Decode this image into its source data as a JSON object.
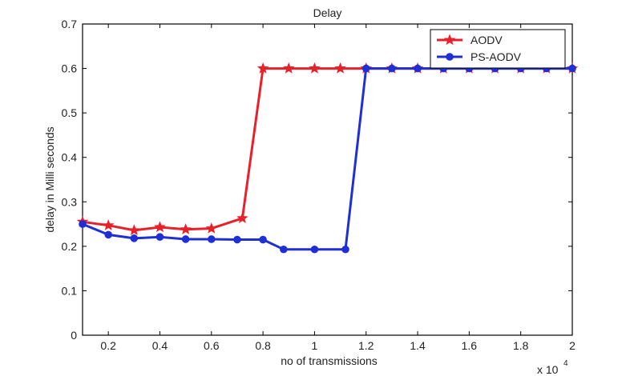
{
  "chart_data": {
    "type": "line",
    "title": "Delay",
    "xlabel": "no of transmissions",
    "ylabel": "delay in Milli seconds",
    "x_multiplier_label": "x 10",
    "x_multiplier_exponent": "4",
    "xlim": [
      0.1,
      2.0
    ],
    "ylim": [
      0,
      0.7
    ],
    "x_ticks": [
      0.2,
      0.4,
      0.6,
      0.8,
      1,
      1.2,
      1.4,
      1.6,
      1.8,
      2
    ],
    "x_tick_labels": [
      "0.2",
      "0.4",
      "0.6",
      "0.8",
      "1",
      "1.2",
      "1.4",
      "1.6",
      "1.8",
      "2"
    ],
    "y_ticks": [
      0,
      0.1,
      0.2,
      0.3,
      0.4,
      0.5,
      0.6,
      0.7
    ],
    "y_tick_labels": [
      "0",
      "0.1",
      "0.2",
      "0.3",
      "0.4",
      "0.5",
      "0.6",
      "0.7"
    ],
    "grid": false,
    "legend_position": "top-right",
    "series": [
      {
        "name": "AODV",
        "color": "#e8202a",
        "marker": "star",
        "x": [
          0.1,
          0.2,
          0.3,
          0.4,
          0.5,
          0.6,
          0.72,
          0.8,
          0.9,
          1.0,
          1.1,
          1.2,
          1.3,
          1.4,
          1.5,
          1.6,
          1.7,
          1.8,
          1.9,
          2.0
        ],
        "y": [
          0.255,
          0.247,
          0.236,
          0.243,
          0.238,
          0.24,
          0.263,
          0.6,
          0.6,
          0.6,
          0.6,
          0.6,
          0.6,
          0.6,
          0.6,
          0.6,
          0.6,
          0.6,
          0.6,
          0.6
        ]
      },
      {
        "name": "PS-AODV",
        "color": "#1f2fd6",
        "marker": "circle",
        "x": [
          0.1,
          0.2,
          0.3,
          0.4,
          0.5,
          0.6,
          0.7,
          0.8,
          0.88,
          1.0,
          1.12,
          1.2,
          1.3,
          1.4,
          1.5,
          1.6,
          1.7,
          1.8,
          1.9,
          2.0
        ],
        "y": [
          0.25,
          0.226,
          0.218,
          0.221,
          0.216,
          0.216,
          0.215,
          0.215,
          0.193,
          0.193,
          0.193,
          0.6,
          0.6,
          0.6,
          0.6,
          0.6,
          0.6,
          0.6,
          0.6,
          0.6
        ]
      }
    ]
  }
}
